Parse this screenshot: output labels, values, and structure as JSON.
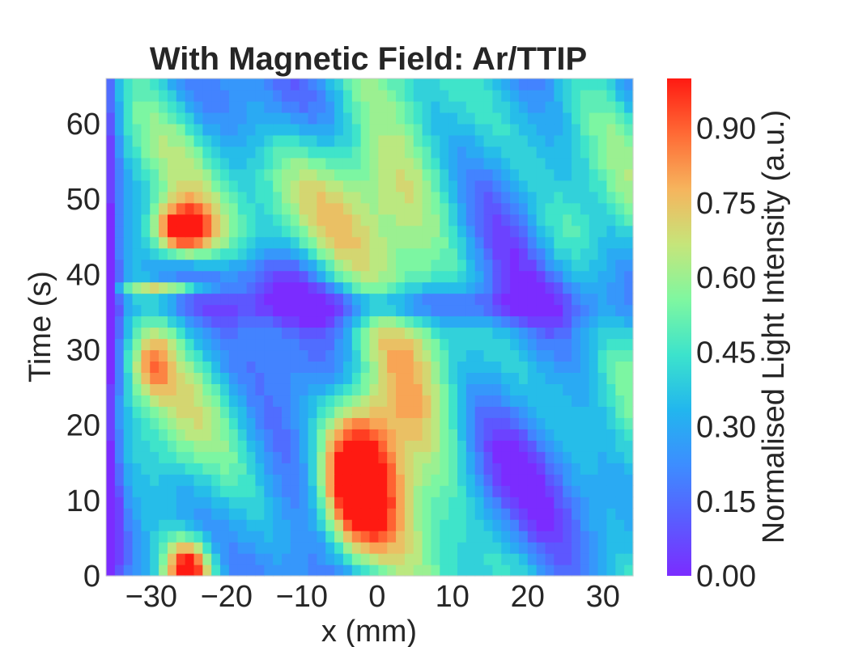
{
  "chart_data": {
    "type": "heatmap",
    "title": "With Magnetic Field: Ar/TTIP",
    "xlabel": "x (mm)",
    "ylabel": "Time (s)",
    "colorbar_label": "Normalised Light Intensity (a.u.)",
    "xlim": [
      -36,
      34
    ],
    "ylim": [
      0,
      66
    ],
    "zlim": [
      0,
      1
    ],
    "x_ticks": [
      -30,
      -20,
      -10,
      0,
      10,
      20,
      30
    ],
    "x_tick_labels": [
      "−30",
      "−20",
      "−10",
      "0",
      "10",
      "20",
      "30"
    ],
    "y_ticks": [
      0,
      10,
      20,
      30,
      40,
      50,
      60
    ],
    "y_tick_labels": [
      "0",
      "10",
      "20",
      "30",
      "40",
      "50",
      "60"
    ],
    "colorbar_ticks": [
      0.0,
      0.15,
      0.3,
      0.45,
      0.6,
      0.75,
      0.9
    ],
    "colorbar_tick_labels": [
      "0.00",
      "0.15",
      "0.30",
      "0.45",
      "0.60",
      "0.75",
      "0.90"
    ],
    "colormap": "rainbow",
    "colormap_stops": [
      "#7b2cff",
      "#5a5cff",
      "#3d8dff",
      "#22b6ee",
      "#3ce3cc",
      "#7ff7a0",
      "#c6e57a",
      "#f6b45d",
      "#ff6a35",
      "#ff1a12"
    ],
    "background_level": 0.32,
    "features": [
      {
        "name": "lower-center-hotspot",
        "x": -3,
        "y": 12,
        "peak": 0.95
      },
      {
        "name": "lower-center-plume",
        "x": 2,
        "y": 20,
        "peak": 0.75
      },
      {
        "name": "lower-left-hotspot",
        "x": -25,
        "y": 1,
        "peak": 0.95
      },
      {
        "name": "upper-left-hotspot",
        "x": -26,
        "y": 46,
        "peak": 0.97
      },
      {
        "name": "left-streak",
        "x": -28,
        "y": 38,
        "peak": 0.8
      },
      {
        "name": "left-spot",
        "x": -30,
        "y": 28,
        "peak": 0.72
      },
      {
        "name": "central-dome",
        "x": -2,
        "y": 50,
        "peak": 0.65
      },
      {
        "name": "right-upper-blob",
        "x": 25,
        "y": 45,
        "peak": 0.5
      },
      {
        "name": "band-minimum",
        "x": 0,
        "y": 36,
        "peak": 0.08
      },
      {
        "name": "left-edge-minimum",
        "x": -36,
        "y": 30,
        "peak": 0.05
      }
    ]
  }
}
